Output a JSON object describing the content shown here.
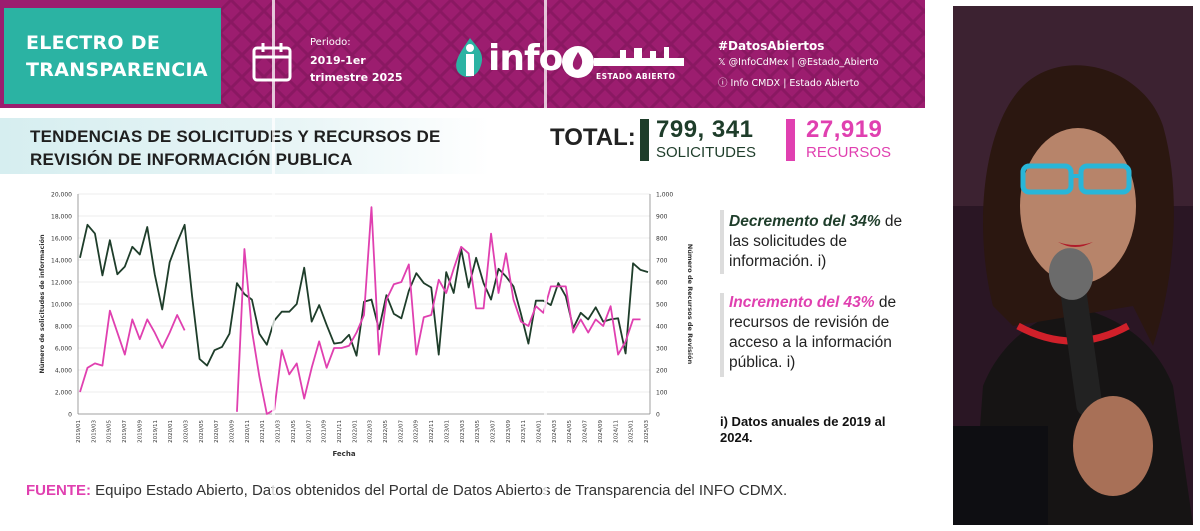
{
  "header": {
    "brand_title": "ELECTRO DE TRANSPARENCIA",
    "period_label": "Periodo:",
    "period_value": "2019-1er trimestre 2025",
    "logo_text": "info",
    "estado_abierto": "ESTADO ABIERTO",
    "hashtag": "#DatosAbiertos",
    "social_x": "𝕏 @InfoCdMex | @Estado_Abierto",
    "social_web": "ⓘ Info CMDX | Estado Abierto",
    "banner_color": "#9c1d6f",
    "brand_color": "#2bb3a3"
  },
  "title": "TENDENCIAS DE SOLICITUDES Y RECURSOS DE REVISIÓN DE INFORMACIÓN PUBLICA",
  "totals": {
    "label": "TOTAL:",
    "solicitudes_value": "799, 341",
    "solicitudes_label": "SOLICITUDES",
    "recursos_value": "27,919",
    "recursos_label": "RECURSOS"
  },
  "notes": {
    "note1_em": "Decremento del 34%",
    "note1_rest": " de las solicitudes de información. i)",
    "note2_em": "Incremento del 43%",
    "note2_rest": " de recursos de revisión de acceso a la información pública. i)",
    "footnote": "i) Datos anuales de 2019 al 2024."
  },
  "source": {
    "label": "FUENTE:",
    "text": " Equipo Estado Abierto, Datos obtenidos del Portal de Datos Abiertos de Transparencia del INFO CDMX."
  },
  "chart_data": {
    "type": "line",
    "xlabel": "Fecha",
    "ylabel": "Número de solicitudes de información",
    "y2label": "Número de Recursos de Revisión",
    "ylim": [
      0,
      20000
    ],
    "y2lim": [
      0,
      1000
    ],
    "yticks": [
      "0",
      "2,000",
      "4,000",
      "6,000",
      "8,000",
      "10,000",
      "12,000",
      "14,000",
      "16,000",
      "18,000",
      "20,000"
    ],
    "y2ticks": [
      "0",
      "100",
      "200",
      "300",
      "400",
      "500",
      "600",
      "700",
      "800",
      "900",
      "1,000"
    ],
    "grid": true,
    "colors": {
      "solicitudes": "#1e3d2a",
      "recursos": "#e040b0"
    },
    "x_ticks": [
      "2019/01",
      "2019/03",
      "2019/05",
      "2019/07",
      "2019/09",
      "2019/11",
      "2020/01",
      "2020/03",
      "2020/05",
      "2020/07",
      "2020/09",
      "2020/11",
      "2021/01",
      "2021/03",
      "2021/05",
      "2021/07",
      "2021/09",
      "2021/11",
      "2022/01",
      "2022/03",
      "2022/05",
      "2022/07",
      "2022/09",
      "2022/11",
      "2023/01",
      "2023/03",
      "2023/05",
      "2023/07",
      "2023/09",
      "2023/11",
      "2024/01",
      "2024/03",
      "2024/05",
      "2024/07",
      "2024/09",
      "2024/11",
      "2025/01",
      "2025/03"
    ],
    "series": [
      {
        "axis": "left",
        "values": [
          14200,
          17200,
          16400,
          12600,
          15800,
          12700,
          13400,
          15200,
          14500,
          17000,
          12700,
          9500,
          13800,
          15600,
          17200,
          10700,
          5000,
          4400,
          5800,
          6100,
          7300,
          11900,
          10900,
          10400,
          7300,
          6300,
          8500,
          9300,
          9300,
          10000,
          13300,
          8400,
          9900,
          8100,
          6400,
          6500,
          7200,
          5300,
          10200,
          10400,
          7700,
          10800,
          9100,
          8700,
          11200,
          12800,
          11900,
          11500,
          5400,
          12900,
          11000,
          15000,
          11500,
          14200,
          11900,
          10400,
          13200,
          12500,
          11600,
          9100,
          6400,
          10300,
          10300,
          9900,
          11900,
          10700,
          7800,
          9200,
          8600,
          9700,
          8400,
          8600,
          8700,
          5500,
          13700,
          13100,
          12900
        ]
      },
      {
        "axis": "right",
        "values": [
          100,
          210,
          230,
          220,
          470,
          370,
          270,
          430,
          340,
          430,
          370,
          300,
          370,
          450,
          380,
          null,
          null,
          null,
          null,
          null,
          null,
          10,
          750,
          380,
          170,
          0,
          20,
          290,
          180,
          230,
          70,
          210,
          330,
          210,
          300,
          300,
          310,
          370,
          450,
          940,
          270,
          520,
          590,
          600,
          680,
          270,
          440,
          450,
          610,
          550,
          660,
          760,
          730,
          480,
          480,
          820,
          550,
          730,
          520,
          420,
          400,
          490,
          460,
          580,
          580,
          580,
          370,
          430,
          370,
          430,
          400,
          490,
          270,
          330,
          430,
          430,
          null
        ]
      }
    ]
  }
}
